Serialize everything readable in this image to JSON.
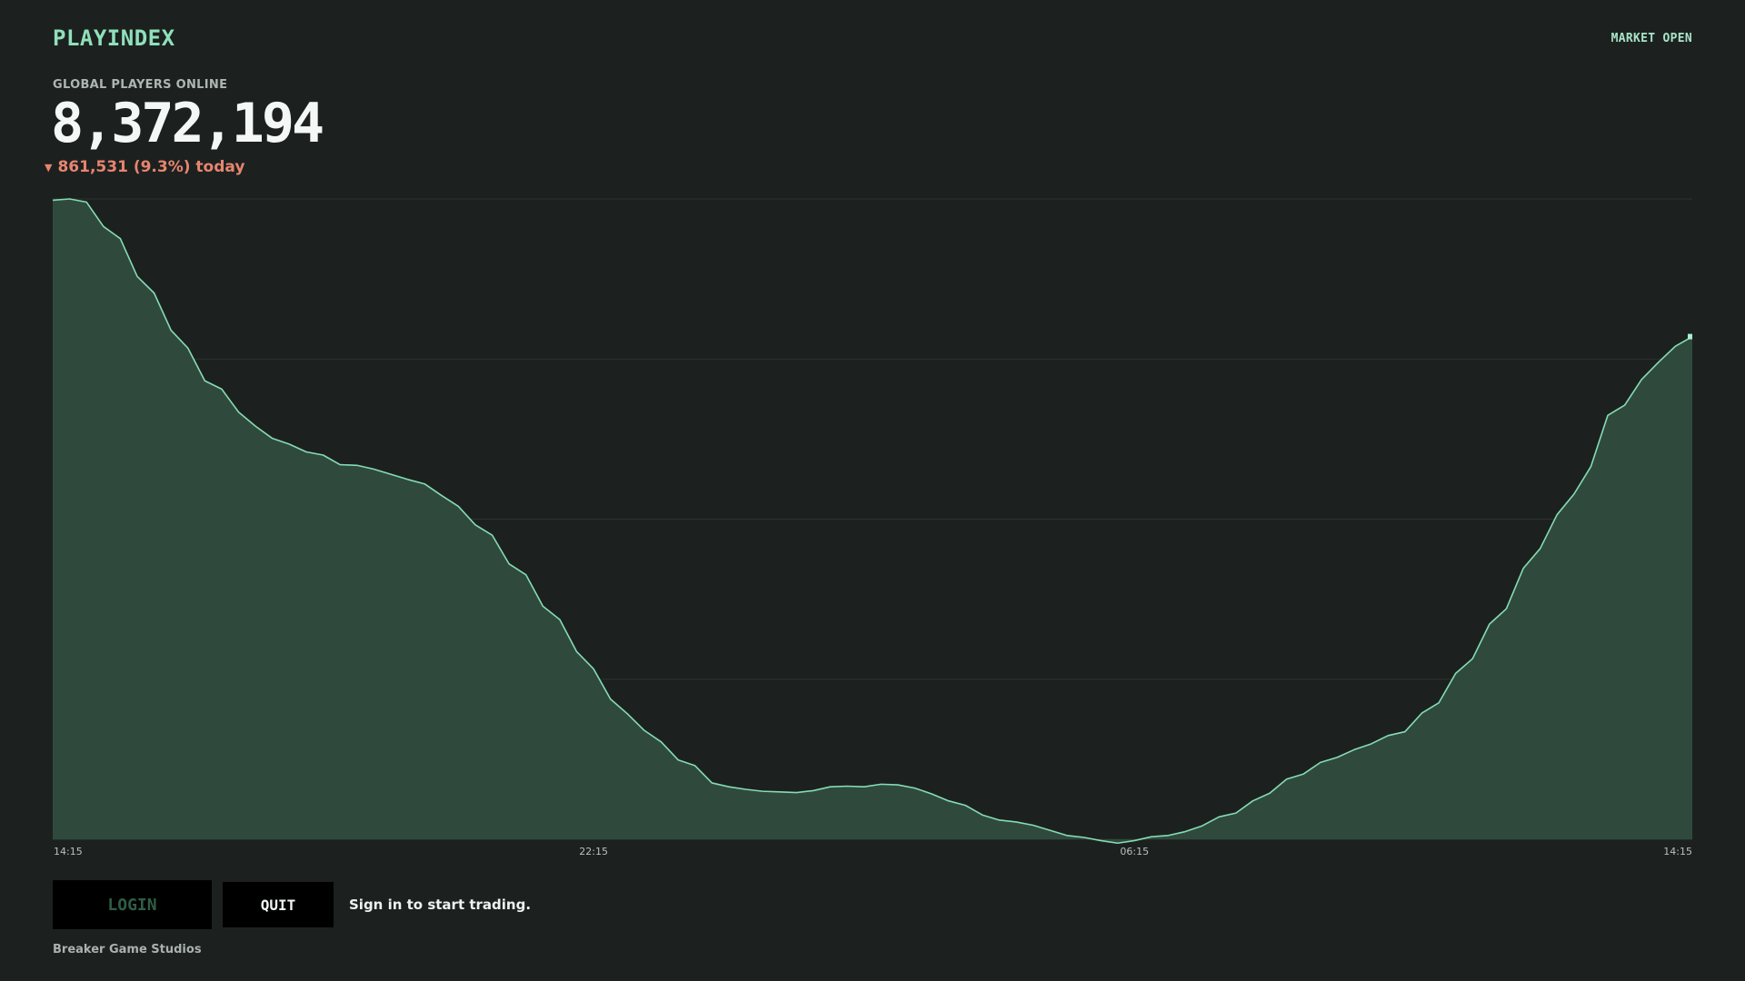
{
  "header": {
    "brand": "PLAYINDEX",
    "market_status": "MARKET OPEN"
  },
  "metric": {
    "label": "GLOBAL PLAYERS ONLINE",
    "value": "8,372,194",
    "change_icon": "triangle-down-icon",
    "change_text": "861,531 (9.3%) today"
  },
  "actions": {
    "login_label": "LOGIN",
    "quit_label": "QUIT",
    "hint": "Sign in to start trading."
  },
  "footer": {
    "studio": "Breaker Game Studios"
  },
  "colors": {
    "background": "#1c2120",
    "accent": "#8fe0bb",
    "area_fill": "#2f4a3d",
    "line": "#86dcb4",
    "negative": "#e8846f"
  },
  "chart_data": {
    "type": "area",
    "title": "",
    "xlabel": "",
    "ylabel": "",
    "x_tick_labels": [
      "14:15",
      "22:15",
      "06:15",
      "14:15"
    ],
    "x_tick_positions": [
      0,
      32,
      64,
      96
    ],
    "grid": true,
    "y_gridlines": 5,
    "values": [
      0.998,
      1.0,
      0.995,
      0.957,
      0.938,
      0.879,
      0.853,
      0.795,
      0.767,
      0.716,
      0.703,
      0.667,
      0.645,
      0.626,
      0.617,
      0.605,
      0.6,
      0.585,
      0.584,
      0.578,
      0.57,
      0.562,
      0.555,
      0.537,
      0.52,
      0.491,
      0.475,
      0.43,
      0.413,
      0.364,
      0.343,
      0.293,
      0.266,
      0.219,
      0.196,
      0.17,
      0.152,
      0.124,
      0.115,
      0.088,
      0.082,
      0.078,
      0.075,
      0.074,
      0.073,
      0.076,
      0.082,
      0.083,
      0.082,
      0.086,
      0.085,
      0.08,
      0.071,
      0.06,
      0.053,
      0.038,
      0.03,
      0.027,
      0.022,
      0.014,
      0.006,
      0.003,
      -0.002,
      -0.006,
      -0.002,
      0.004,
      0.006,
      0.012,
      0.021,
      0.035,
      0.041,
      0.06,
      0.072,
      0.094,
      0.102,
      0.12,
      0.128,
      0.14,
      0.149,
      0.162,
      0.168,
      0.197,
      0.213,
      0.259,
      0.282,
      0.336,
      0.36,
      0.423,
      0.454,
      0.507,
      0.539,
      0.582,
      0.662,
      0.678,
      0.718,
      0.745,
      0.77,
      0.785
    ]
  }
}
